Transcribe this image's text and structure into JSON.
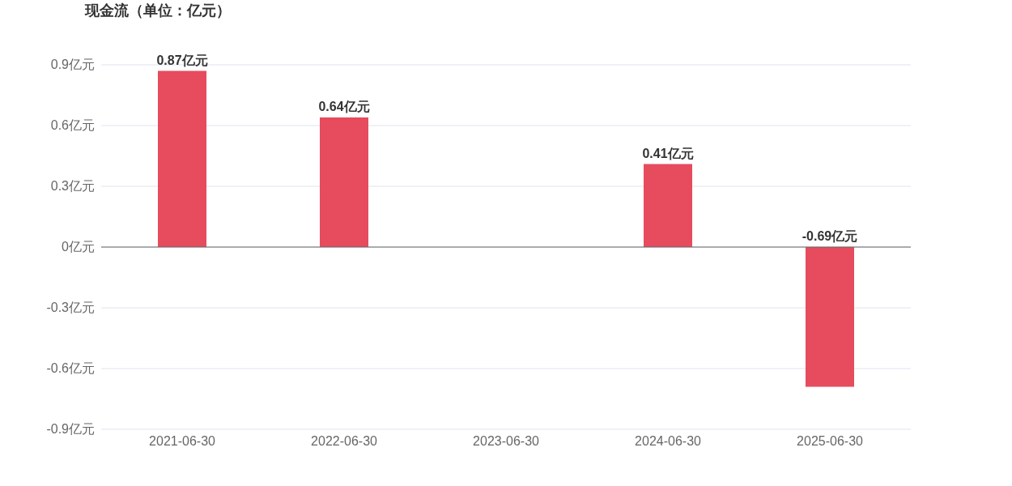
{
  "chart_data": {
    "type": "bar",
    "title": "现金流（单位：亿元）",
    "categories": [
      "2021-06-30",
      "2022-06-30",
      "2023-06-30",
      "2024-06-30",
      "2025-06-30"
    ],
    "values": [
      0.87,
      0.64,
      null,
      0.41,
      -0.69
    ],
    "value_labels": [
      "0.87亿元",
      "0.64亿元",
      null,
      "0.41亿元",
      "-0.69亿元"
    ],
    "color": "#e64b5e",
    "ylim": [
      -0.9,
      0.9
    ],
    "yticks": [
      {
        "value": -0.9,
        "label": "-0.9亿元"
      },
      {
        "value": -0.6,
        "label": "-0.6亿元"
      },
      {
        "value": -0.3,
        "label": "-0.3亿元"
      },
      {
        "value": 0,
        "label": "0亿元"
      },
      {
        "value": 0.3,
        "label": "0.3亿元"
      },
      {
        "value": 0.6,
        "label": "0.6亿元"
      },
      {
        "value": 0.9,
        "label": "0.9亿元"
      }
    ],
    "grid": "y"
  }
}
